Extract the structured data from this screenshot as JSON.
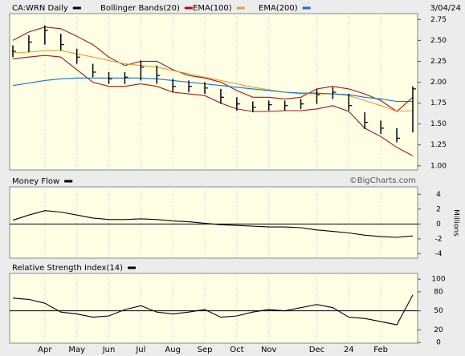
{
  "chart_data": [
    {
      "type": "ohlc",
      "title": "CA:WRN Daily",
      "date": "3/04/24",
      "color": "#000000",
      "high": [
        2.44,
        2.56,
        2.68,
        2.58,
        2.4,
        2.22,
        2.12,
        2.12,
        2.26,
        2.2,
        2.04,
        2.02,
        2.0,
        1.92,
        1.82,
        1.77,
        1.78,
        1.78,
        1.8,
        1.92,
        1.94,
        1.86,
        1.64,
        1.54,
        1.45,
        1.95
      ],
      "low": [
        2.3,
        2.36,
        2.45,
        2.38,
        2.22,
        2.06,
        1.98,
        1.98,
        2.02,
        1.98,
        1.88,
        1.88,
        1.86,
        1.74,
        1.66,
        1.64,
        1.66,
        1.66,
        1.68,
        1.74,
        1.8,
        1.66,
        1.44,
        1.38,
        1.28,
        1.4
      ],
      "close": [
        2.37,
        2.48,
        2.62,
        2.45,
        2.3,
        2.12,
        2.04,
        2.06,
        2.18,
        2.08,
        1.95,
        1.95,
        1.93,
        1.82,
        1.74,
        1.7,
        1.73,
        1.72,
        1.74,
        1.85,
        1.88,
        1.72,
        1.52,
        1.45,
        1.33,
        1.92
      ],
      "series": [
        {
          "name": "Bollinger Bands(20)",
          "color": "#a31515",
          "upper": [
            2.5,
            2.6,
            2.66,
            2.64,
            2.55,
            2.45,
            2.3,
            2.2,
            2.25,
            2.25,
            2.15,
            2.08,
            2.05,
            2.0,
            1.9,
            1.82,
            1.82,
            1.8,
            1.82,
            1.92,
            1.95,
            1.92,
            1.86,
            1.78,
            1.65,
            1.82
          ],
          "lower": [
            2.28,
            2.3,
            2.32,
            2.3,
            2.15,
            2.0,
            1.95,
            1.95,
            1.98,
            1.95,
            1.88,
            1.86,
            1.84,
            1.75,
            1.68,
            1.65,
            1.65,
            1.66,
            1.66,
            1.68,
            1.72,
            1.65,
            1.45,
            1.35,
            1.22,
            1.12
          ]
        },
        {
          "name": "EMA(100)",
          "color": "#e0a030",
          "values": [
            2.35,
            2.36,
            2.38,
            2.38,
            2.34,
            2.3,
            2.26,
            2.22,
            2.2,
            2.18,
            2.14,
            2.1,
            2.06,
            2.02,
            1.98,
            1.94,
            1.91,
            1.88,
            1.86,
            1.86,
            1.86,
            1.84,
            1.78,
            1.72,
            1.65,
            1.66
          ]
        },
        {
          "name": "EMA(200)",
          "color": "#1a6fd6",
          "values": [
            1.96,
            1.99,
            2.02,
            2.04,
            2.05,
            2.05,
            2.05,
            2.05,
            2.05,
            2.04,
            2.02,
            2.0,
            1.98,
            1.96,
            1.94,
            1.92,
            1.9,
            1.88,
            1.87,
            1.87,
            1.86,
            1.85,
            1.82,
            1.8,
            1.77,
            1.77
          ]
        }
      ],
      "ylim": [
        0.95,
        2.82
      ],
      "yticks": [
        {
          "value": 1.0,
          "label": "1.00"
        },
        1.25,
        {
          "value": 1.5,
          "label": "1.50"
        },
        1.75,
        {
          "value": 2.0,
          "label": "2.00"
        },
        2.25,
        {
          "value": 2.5,
          "label": "2.50"
        },
        2.75
      ]
    },
    {
      "type": "line",
      "title": "Money Flow",
      "source": "©BigCharts.com",
      "y_label": "Millions",
      "color": "#000000",
      "values": [
        0.5,
        1.2,
        1.8,
        1.6,
        1.2,
        0.8,
        0.6,
        0.6,
        0.7,
        0.6,
        0.4,
        0.3,
        0.1,
        -0.1,
        -0.2,
        -0.3,
        -0.4,
        -0.4,
        -0.5,
        -0.8,
        -1.0,
        -1.2,
        -1.5,
        -1.7,
        -1.8,
        -1.6
      ],
      "ylim": [
        -4.6,
        5
      ],
      "yticks": [
        -4,
        -2,
        0,
        2,
        4
      ],
      "baseline": 0
    },
    {
      "type": "line",
      "title": "Relative Strength Index(14)",
      "color": "#000000",
      "categories": [
        null,
        null,
        "Apr",
        null,
        "May",
        null,
        "Jun",
        null,
        "Jul",
        null,
        "Aug",
        null,
        "Sep",
        null,
        "Oct",
        null,
        "Nov",
        null,
        null,
        "Dec",
        null,
        "24",
        null,
        "Feb",
        null,
        null
      ],
      "values": [
        70,
        68,
        62,
        48,
        45,
        40,
        42,
        52,
        58,
        48,
        45,
        48,
        52,
        40,
        42,
        48,
        52,
        50,
        55,
        60,
        55,
        40,
        38,
        33,
        28,
        75
      ],
      "ylim": [
        -1,
        109
      ],
      "yticks": [
        0,
        20,
        50,
        80,
        100
      ],
      "baseline": 50
    }
  ]
}
